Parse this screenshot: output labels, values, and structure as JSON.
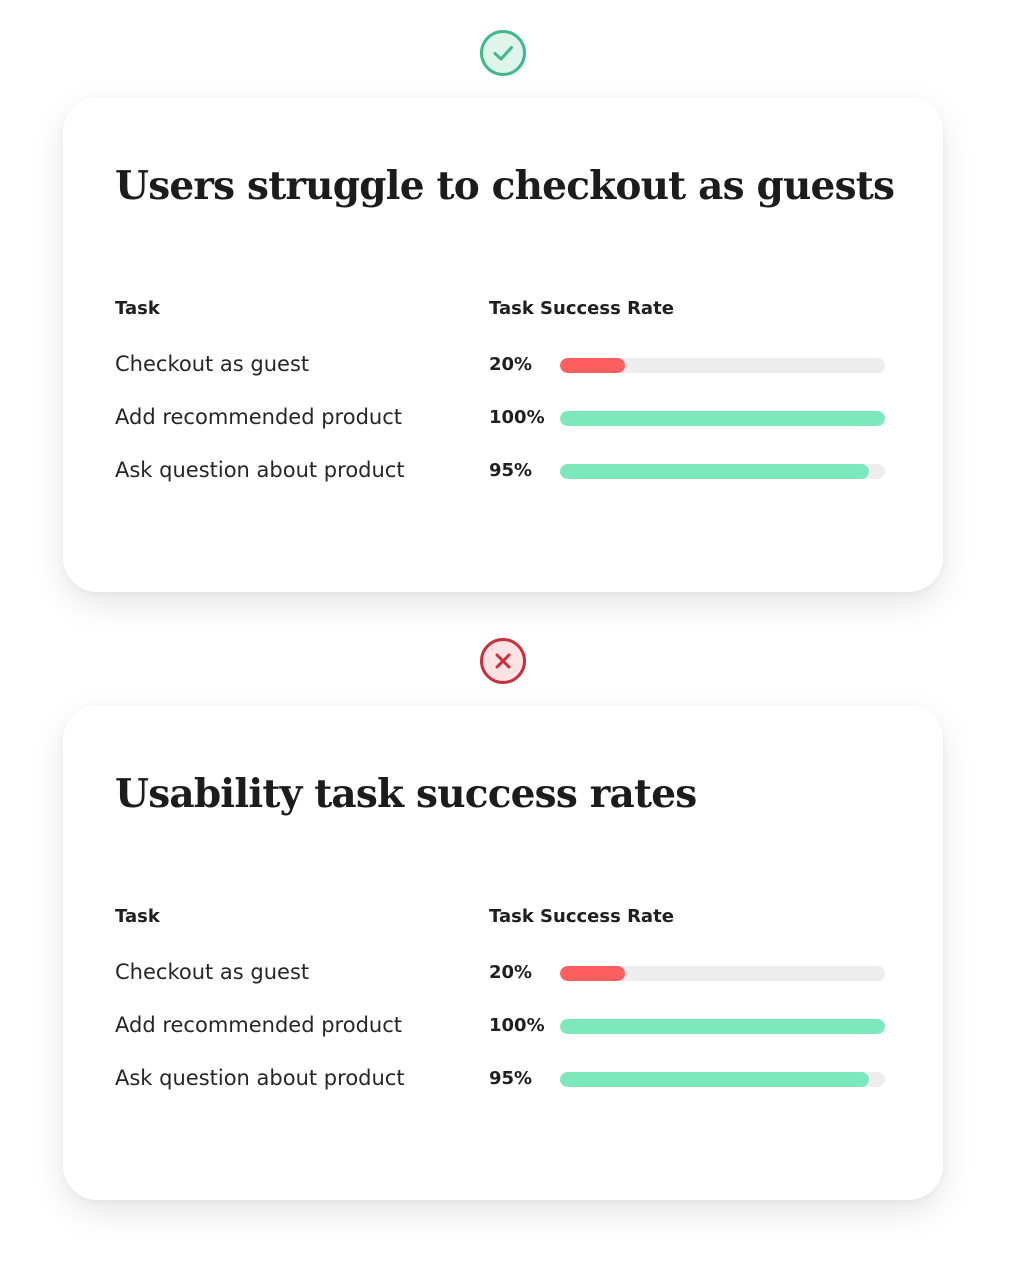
{
  "colors": {
    "good": "#7de8bd",
    "bad": "#ff5e5e",
    "track": "#ededed",
    "check_icon_fill": "#dff5ec",
    "check_icon_stroke": "#3fb98c",
    "cross_icon_fill": "#fbe3e5",
    "cross_icon_stroke": "#c9303c"
  },
  "badges": [
    {
      "icon": "check-circle-icon"
    },
    {
      "icon": "x-circle-icon"
    }
  ],
  "cards": [
    {
      "title": "Users struggle to checkout as guests",
      "headers": {
        "task": "Task",
        "rate": "Task Success Rate"
      },
      "rows": [
        {
          "task": "Checkout as guest",
          "pct_label": "20%",
          "rate": 0.2,
          "status": "bad"
        },
        {
          "task": "Add recommended product",
          "pct_label": "100%",
          "rate": 1.0,
          "status": "good"
        },
        {
          "task": "Ask question about product",
          "pct_label": "95%",
          "rate": 0.95,
          "status": "good"
        }
      ]
    },
    {
      "title": "Usability task success rates",
      "headers": {
        "task": "Task",
        "rate": "Task Success Rate"
      },
      "rows": [
        {
          "task": "Checkout as guest",
          "pct_label": "20%",
          "rate": 0.2,
          "status": "bad"
        },
        {
          "task": "Add recommended product",
          "pct_label": "100%",
          "rate": 1.0,
          "status": "good"
        },
        {
          "task": "Ask question about product",
          "pct_label": "95%",
          "rate": 0.95,
          "status": "good"
        }
      ]
    }
  ]
}
